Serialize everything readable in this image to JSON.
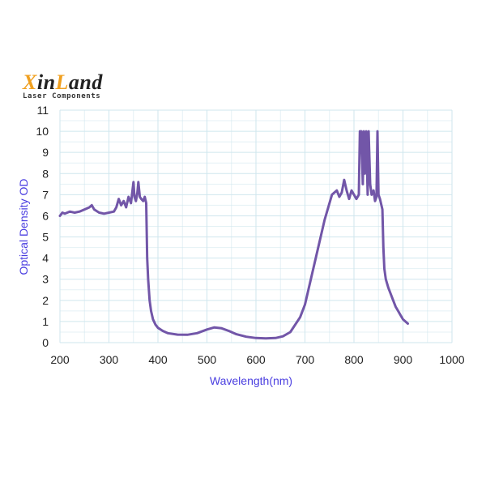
{
  "logo": {
    "brand_x": "X",
    "brand_in": "in",
    "brand_l": "L",
    "brand_and": "and",
    "tagline": "Laser Components"
  },
  "colors": {
    "line": "#7256a8",
    "grid": "#cfe6ee",
    "axis_title": "#4a3ee0",
    "logo_accent": "#f0a020"
  },
  "chart_data": {
    "type": "line",
    "title": "",
    "xlabel": "Wavelength(nm)",
    "ylabel": "Optical Density OD",
    "xlim": [
      200,
      1000
    ],
    "ylim": [
      0,
      11
    ],
    "xticks": [
      200,
      300,
      400,
      500,
      600,
      700,
      800,
      900,
      1000
    ],
    "yticks": [
      0,
      1,
      2,
      3,
      4,
      5,
      6,
      7,
      8,
      9,
      10,
      11
    ],
    "grid": true,
    "legend": null,
    "series": [
      {
        "name": "OD",
        "x": [
          200,
          205,
          210,
          220,
          230,
          240,
          250,
          260,
          265,
          270,
          280,
          290,
          300,
          310,
          315,
          320,
          325,
          330,
          335,
          340,
          345,
          350,
          352,
          355,
          358,
          360,
          363,
          366,
          370,
          373,
          376,
          378,
          380,
          383,
          386,
          390,
          395,
          400,
          410,
          420,
          440,
          460,
          480,
          500,
          515,
          530,
          545,
          560,
          580,
          600,
          620,
          640,
          655,
          670,
          690,
          700,
          720,
          740,
          755,
          765,
          770,
          775,
          780,
          785,
          790,
          795,
          800,
          805,
          810,
          812,
          815,
          818,
          820,
          822,
          825,
          828,
          830,
          833,
          836,
          840,
          843,
          846,
          848,
          850,
          853,
          856,
          858,
          860,
          862,
          865,
          870,
          875,
          880,
          885,
          890,
          895,
          900,
          905,
          910
        ],
        "values": [
          6.0,
          6.15,
          6.1,
          6.2,
          6.15,
          6.2,
          6.3,
          6.4,
          6.5,
          6.3,
          6.15,
          6.1,
          6.15,
          6.2,
          6.4,
          6.8,
          6.5,
          6.7,
          6.4,
          6.9,
          6.6,
          7.6,
          6.9,
          6.7,
          7.1,
          7.6,
          6.9,
          6.8,
          6.7,
          6.9,
          6.6,
          4.0,
          3.0,
          2.0,
          1.5,
          1.1,
          0.85,
          0.7,
          0.55,
          0.45,
          0.38,
          0.37,
          0.45,
          0.62,
          0.72,
          0.68,
          0.55,
          0.4,
          0.28,
          0.22,
          0.2,
          0.22,
          0.3,
          0.5,
          1.2,
          1.8,
          3.8,
          5.8,
          7.0,
          7.2,
          6.9,
          7.1,
          7.7,
          7.2,
          6.8,
          7.2,
          7.0,
          6.8,
          7.0,
          10.0,
          10.0,
          7.5,
          10.0,
          8.0,
          10.0,
          7.0,
          10.0,
          7.5,
          7.0,
          7.2,
          6.7,
          6.9,
          10.0,
          7.0,
          6.8,
          6.5,
          6.3,
          4.5,
          3.5,
          3.0,
          2.6,
          2.3,
          2.0,
          1.7,
          1.5,
          1.3,
          1.1,
          1.0,
          0.9
        ]
      }
    ]
  }
}
